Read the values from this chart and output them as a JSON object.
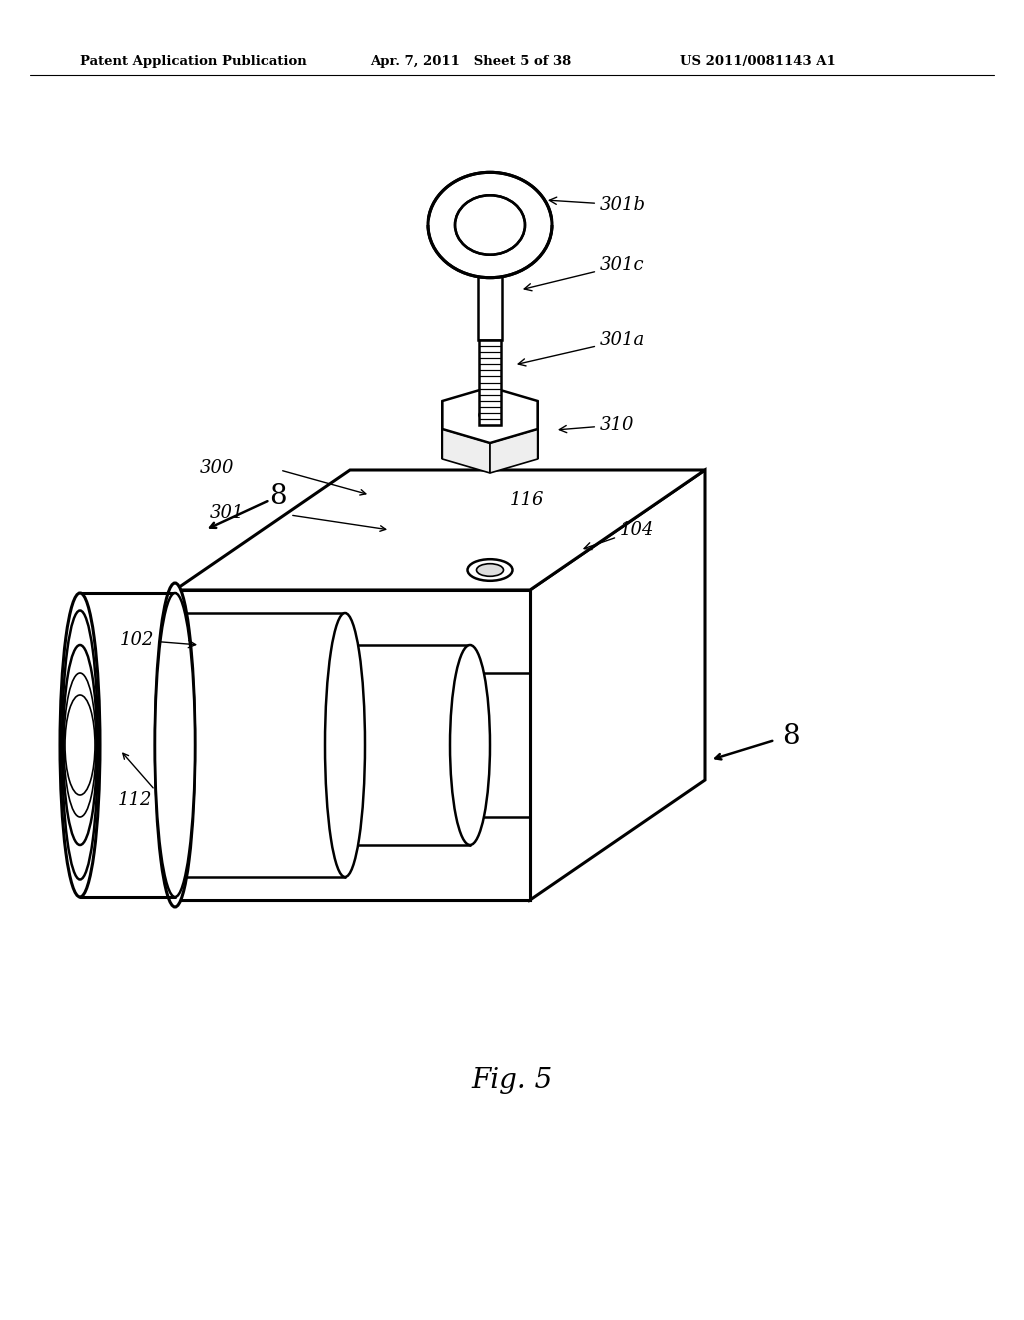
{
  "bg_color": "#ffffff",
  "line_color": "#000000",
  "header_left": "Patent Application Publication",
  "header_mid": "Apr. 7, 2011   Sheet 5 of 38",
  "header_right": "US 2011/0081143 A1",
  "fig_label": "Fig. 5"
}
